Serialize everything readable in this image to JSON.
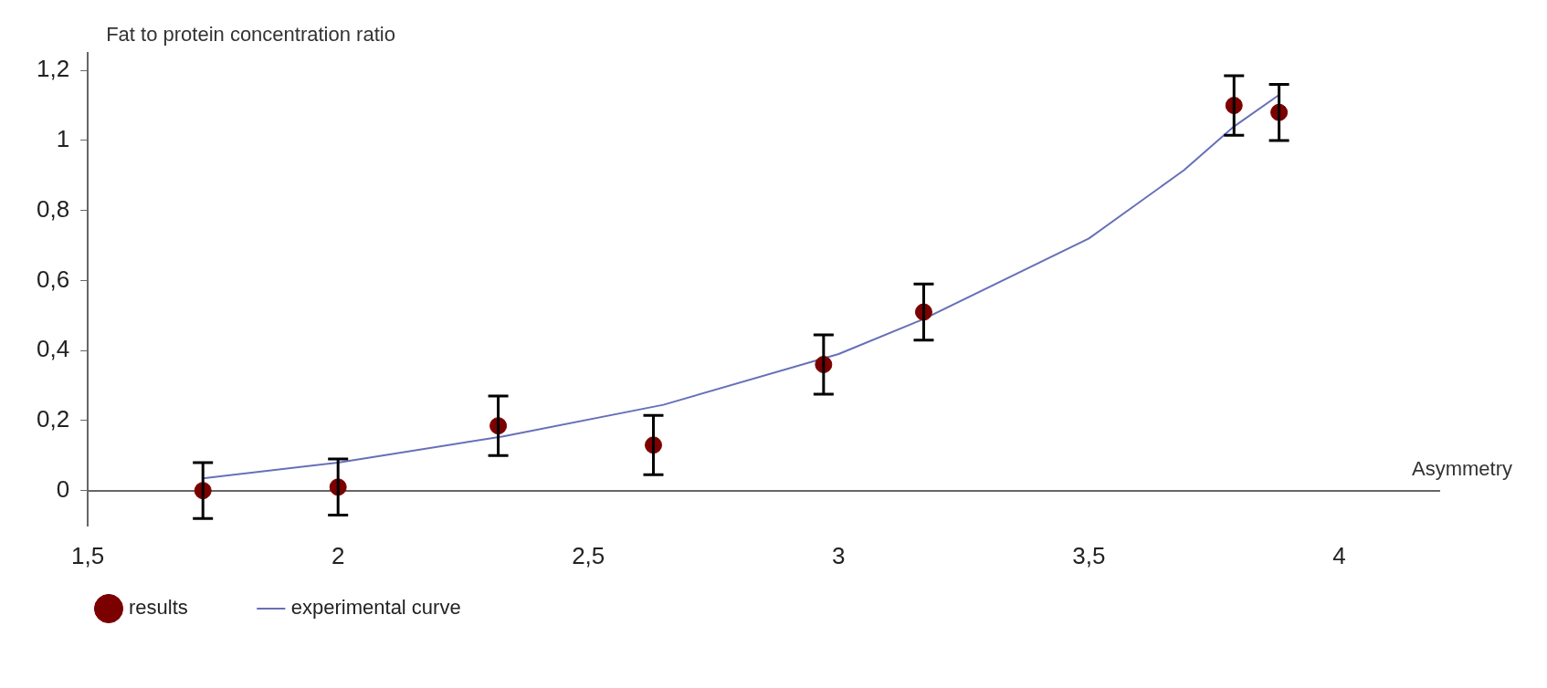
{
  "chart_data": {
    "type": "scatter",
    "ylabel": "Fat to protein concentration ratio",
    "xlabel": "Asymmetry",
    "xlim": [
      1.5,
      4.2
    ],
    "xticks": [
      {
        "value": 1.5,
        "label": "1,5"
      },
      2,
      {
        "value": 2.5,
        "label": "2,5"
      },
      3,
      {
        "value": 3.5,
        "label": "3,5"
      },
      4
    ],
    "ylim": [
      -0.1,
      1.25
    ],
    "yticks": [
      0,
      {
        "value": 0.2,
        "label": "0,2"
      },
      {
        "value": 0.4,
        "label": "0,4"
      },
      {
        "value": 0.6,
        "label": "0,6"
      },
      {
        "value": 0.8,
        "label": "0,8"
      },
      1,
      {
        "value": 1.2,
        "label": "1,2"
      }
    ],
    "grid": false,
    "legend": "bottom left",
    "marker": "circle",
    "series": [
      {
        "name": "results",
        "color": "#7b0000",
        "x": [
          1.73,
          2.0,
          2.32,
          2.63,
          2.97,
          3.17,
          3.79,
          3.88
        ],
        "values": [
          0.0,
          0.01,
          0.185,
          0.13,
          0.36,
          0.51,
          1.1,
          1.08
        ],
        "errors": [
          0.08,
          0.08,
          0.085,
          0.085,
          0.085,
          0.08,
          0.085,
          0.08
        ]
      },
      {
        "name": "experimental curve",
        "type": "line",
        "color": "#6670b8",
        "marker": "none",
        "x": [
          1.73,
          2.0,
          2.33,
          2.65,
          3.0,
          3.17,
          3.5,
          3.69,
          3.79,
          3.88
        ],
        "values": [
          0.035,
          0.08,
          0.155,
          0.245,
          0.39,
          0.49,
          0.72,
          0.915,
          1.04,
          1.13
        ]
      }
    ]
  }
}
